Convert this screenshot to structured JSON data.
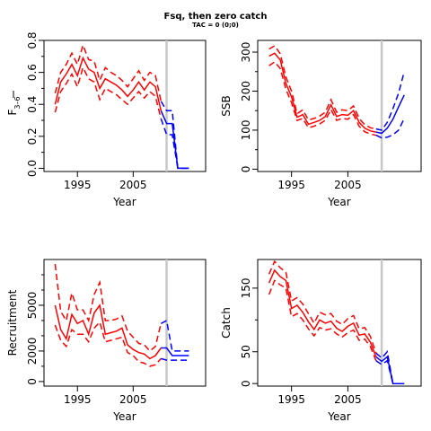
{
  "title": "Fsq, then zero catch",
  "subtitle": "TAC = 0 (0;0)",
  "colors": {
    "history": "#ff0000",
    "projection": "#0000ff",
    "marker": "#c8c8c8",
    "axis": "#000000"
  },
  "chart_data": [
    {
      "type": "line",
      "ylabel_main": "F",
      "ylabel_sub": "3–6",
      "xlabel": "Year",
      "xlim": [
        1989,
        2018
      ],
      "ylim": [
        -0.02,
        0.8
      ],
      "xticks": [
        1995,
        2005
      ],
      "yticks": [
        0.0,
        0.2,
        0.4,
        0.6,
        0.8
      ],
      "ytick_labels": [
        "0.0",
        "0.2",
        "0.4",
        "0.6",
        "0.8"
      ],
      "yminor": [
        0.1,
        0.3,
        0.5,
        0.7
      ],
      "marker_year": 2011,
      "history": {
        "x": [
          1991,
          1992,
          1993,
          1994,
          1995,
          1996,
          1997,
          1998,
          1999,
          2000,
          2001,
          2002,
          2003,
          2004,
          2005,
          2006,
          2007,
          2008,
          2009,
          2010
        ],
        "median": [
          0.4,
          0.54,
          0.59,
          0.65,
          0.58,
          0.69,
          0.62,
          0.6,
          0.5,
          0.56,
          0.54,
          0.52,
          0.49,
          0.45,
          0.49,
          0.54,
          0.49,
          0.54,
          0.51,
          0.36
        ],
        "upper": [
          0.47,
          0.6,
          0.65,
          0.72,
          0.65,
          0.77,
          0.68,
          0.67,
          0.55,
          0.63,
          0.6,
          0.58,
          0.55,
          0.51,
          0.56,
          0.61,
          0.55,
          0.6,
          0.58,
          0.42
        ],
        "lower": [
          0.35,
          0.48,
          0.53,
          0.59,
          0.51,
          0.63,
          0.56,
          0.54,
          0.43,
          0.5,
          0.48,
          0.46,
          0.43,
          0.4,
          0.44,
          0.48,
          0.44,
          0.48,
          0.45,
          0.31
        ]
      },
      "projection": {
        "x": [
          2010,
          2011,
          2012,
          2013,
          2014,
          2015
        ],
        "median": [
          0.36,
          0.28,
          0.28,
          0.0,
          0.0,
          0.0
        ],
        "upper": [
          0.42,
          0.36,
          0.36,
          0.0,
          0.0,
          0.0
        ],
        "lower": [
          0.31,
          0.21,
          0.21,
          0.0,
          0.0,
          0.0
        ]
      }
    },
    {
      "type": "line",
      "ylabel_main": "SSB",
      "ylabel_sub": "",
      "xlabel": "Year",
      "xlim": [
        1989,
        2018
      ],
      "ylim": [
        -6,
        330
      ],
      "xticks": [
        1995,
        2005
      ],
      "yticks": [
        0,
        100,
        200,
        300
      ],
      "ytick_labels": [
        "0",
        "100",
        "200",
        "300"
      ],
      "yminor": [
        50,
        150,
        250
      ],
      "marker_year": 2011,
      "history": {
        "x": [
          1991,
          1992,
          1993,
          1994,
          1995,
          1996,
          1997,
          1998,
          1999,
          2000,
          2001,
          2002,
          2003,
          2004,
          2005,
          2006,
          2007,
          2008,
          2009,
          2010
        ],
        "median": [
          290,
          297,
          280,
          220,
          185,
          133,
          140,
          115,
          120,
          125,
          135,
          165,
          135,
          140,
          138,
          150,
          120,
          105,
          98,
          95
        ],
        "upper": [
          308,
          316,
          296,
          236,
          200,
          142,
          152,
          126,
          130,
          136,
          146,
          178,
          146,
          152,
          150,
          162,
          130,
          114,
          106,
          103
        ],
        "lower": [
          265,
          275,
          258,
          205,
          170,
          125,
          130,
          106,
          110,
          116,
          125,
          153,
          125,
          130,
          128,
          140,
          110,
          96,
          90,
          87
        ]
      },
      "projection": {
        "x": [
          2010,
          2011,
          2012,
          2013,
          2014,
          2015
        ],
        "median": [
          95,
          92,
          105,
          128,
          160,
          190
        ],
        "upper": [
          103,
          100,
          120,
          155,
          195,
          250
        ],
        "lower": [
          87,
          80,
          82,
          88,
          100,
          130
        ]
      }
    },
    {
      "type": "line",
      "ylabel_main": "Recruitment",
      "ylabel_sub": "",
      "xlabel": "Year",
      "xlim": [
        1989,
        2018
      ],
      "ylim": [
        -300,
        8000
      ],
      "xticks": [
        1995,
        2005
      ],
      "yticks": [
        0,
        2000,
        5000
      ],
      "ytick_labels": [
        "0",
        "2000",
        "5000"
      ],
      "yminor": [
        1000,
        3000,
        4000,
        6000,
        7000
      ],
      "marker_year": 2011,
      "history": {
        "x": [
          1991,
          1992,
          1993,
          1994,
          1995,
          1996,
          1997,
          1998,
          1999,
          2000,
          2001,
          2002,
          2003,
          2004,
          2005,
          2006,
          2007,
          2008,
          2009,
          2010
        ],
        "median": [
          5000,
          3400,
          2800,
          4400,
          3800,
          4000,
          3100,
          4500,
          5000,
          3100,
          3200,
          3300,
          3500,
          2400,
          2100,
          1900,
          1800,
          1500,
          1700,
          2200
        ],
        "upper": [
          7700,
          4600,
          4000,
          5800,
          4700,
          4700,
          4000,
          5700,
          6500,
          4000,
          4000,
          4100,
          4300,
          3300,
          2900,
          2500,
          2400,
          2000,
          2300,
          3800
        ],
        "lower": [
          3700,
          2700,
          2300,
          3400,
          3100,
          3100,
          2600,
          3500,
          3900,
          2600,
          2700,
          2800,
          2900,
          1900,
          1700,
          1300,
          1200,
          1000,
          1100,
          1500
        ]
      },
      "projection": {
        "x": [
          2010,
          2011,
          2012,
          2013,
          2014,
          2015
        ],
        "median": [
          2200,
          2200,
          1700,
          1700,
          1700,
          1700
        ],
        "upper": [
          3800,
          4000,
          2000,
          2000,
          2000,
          2000
        ],
        "lower": [
          1500,
          1400,
          1400,
          1400,
          1400,
          1400
        ]
      }
    },
    {
      "type": "line",
      "ylabel_main": "Catch",
      "ylabel_sub": "",
      "xlabel": "Year",
      "xlim": [
        1989,
        2018
      ],
      "ylim": [
        -4,
        195
      ],
      "xticks": [
        1995,
        2005
      ],
      "yticks": [
        0,
        50,
        150
      ],
      "ytick_labels": [
        "0",
        "50",
        "150"
      ],
      "yminor": [
        100
      ],
      "marker_year": 2011,
      "history": {
        "x": [
          1991,
          1992,
          1993,
          1994,
          1995,
          1996,
          1997,
          1998,
          1999,
          2000,
          2001,
          2002,
          2003,
          2004,
          2005,
          2006,
          2007,
          2008,
          2009,
          2010
        ],
        "median": [
          158,
          178,
          168,
          162,
          118,
          123,
          112,
          97,
          85,
          100,
          95,
          98,
          87,
          82,
          90,
          95,
          76,
          78,
          65,
          42
        ],
        "upper": [
          172,
          192,
          182,
          175,
          130,
          135,
          125,
          110,
          95,
          112,
          108,
          110,
          98,
          93,
          102,
          107,
          86,
          88,
          74,
          48
        ],
        "lower": [
          140,
          162,
          155,
          150,
          105,
          110,
          100,
          86,
          75,
          88,
          84,
          86,
          78,
          73,
          80,
          84,
          68,
          70,
          58,
          36
        ]
      },
      "projection": {
        "x": [
          2010,
          2011,
          2012,
          2013,
          2014,
          2015
        ],
        "median": [
          42,
          35,
          42,
          0,
          0,
          0
        ],
        "upper": [
          48,
          40,
          50,
          0,
          0,
          0
        ],
        "lower": [
          36,
          30,
          36,
          0,
          0,
          0
        ]
      }
    }
  ]
}
